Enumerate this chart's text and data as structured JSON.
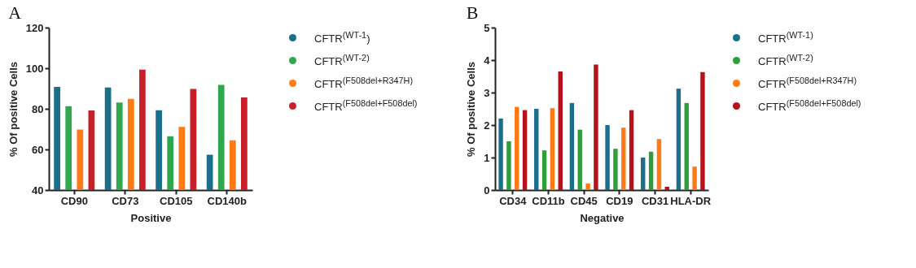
{
  "chart_data": [
    {
      "type": "bar",
      "title": "A",
      "xlabel": "Positive",
      "ylabel": "% Of positive Cells",
      "categories": [
        "CD90",
        "CD73",
        "CD105",
        "CD140b"
      ],
      "ylim": [
        40,
        120
      ],
      "yticks": [
        40,
        60,
        80,
        100,
        120
      ],
      "legend": "right",
      "series": [
        {
          "name": "CFTR$^{(WT-1}$)",
          "color": "#1b6f8a",
          "values": [
            90.8,
            90.5,
            79.3,
            57.4
          ]
        },
        {
          "name": "CFTR$^{(WT-2)}$",
          "color": "#2fa84f",
          "values": [
            81.3,
            83.1,
            66.5,
            91.8
          ]
        },
        {
          "name": "CFTR$^{(F508del+R347H)}$",
          "color": "#ff7a14",
          "values": [
            69.8,
            84.9,
            71.1,
            64.5
          ]
        },
        {
          "name": "CFTR$^{(F508del+F508del)}$",
          "color": "#c8202a",
          "values": [
            79.2,
            99.3,
            89.8,
            85.6
          ]
        }
      ]
    },
    {
      "type": "bar",
      "title": "B",
      "xlabel": "Negative",
      "ylabel": "% Of positive Cells",
      "categories": [
        "CD34",
        "CD11b",
        "CD45",
        "CD19",
        "CD31",
        "HLA-DR"
      ],
      "ylim": [
        0,
        5
      ],
      "yticks": [
        0,
        1,
        2,
        3,
        4,
        5
      ],
      "legend": "right",
      "series": [
        {
          "name": "CFTR$^{(WT-1)}$",
          "color": "#1b6f8a",
          "values": [
            2.2,
            2.5,
            2.68,
            2.0,
            1.0,
            3.12
          ]
        },
        {
          "name": "CFTR$^{(WT-2)}$",
          "color": "#2e9e3a",
          "values": [
            1.5,
            1.22,
            1.86,
            1.27,
            1.18,
            2.68
          ]
        },
        {
          "name": "CFTR$^{(F508del+R347H)}$",
          "color": "#ff7a14",
          "values": [
            2.56,
            2.52,
            0.2,
            1.92,
            1.57,
            0.72
          ]
        },
        {
          "name": "CFTR$^{(F508del+F508del)}$",
          "color": "#b5121b",
          "values": [
            2.46,
            3.65,
            3.86,
            2.46,
            0.1,
            3.63
          ]
        }
      ]
    }
  ]
}
